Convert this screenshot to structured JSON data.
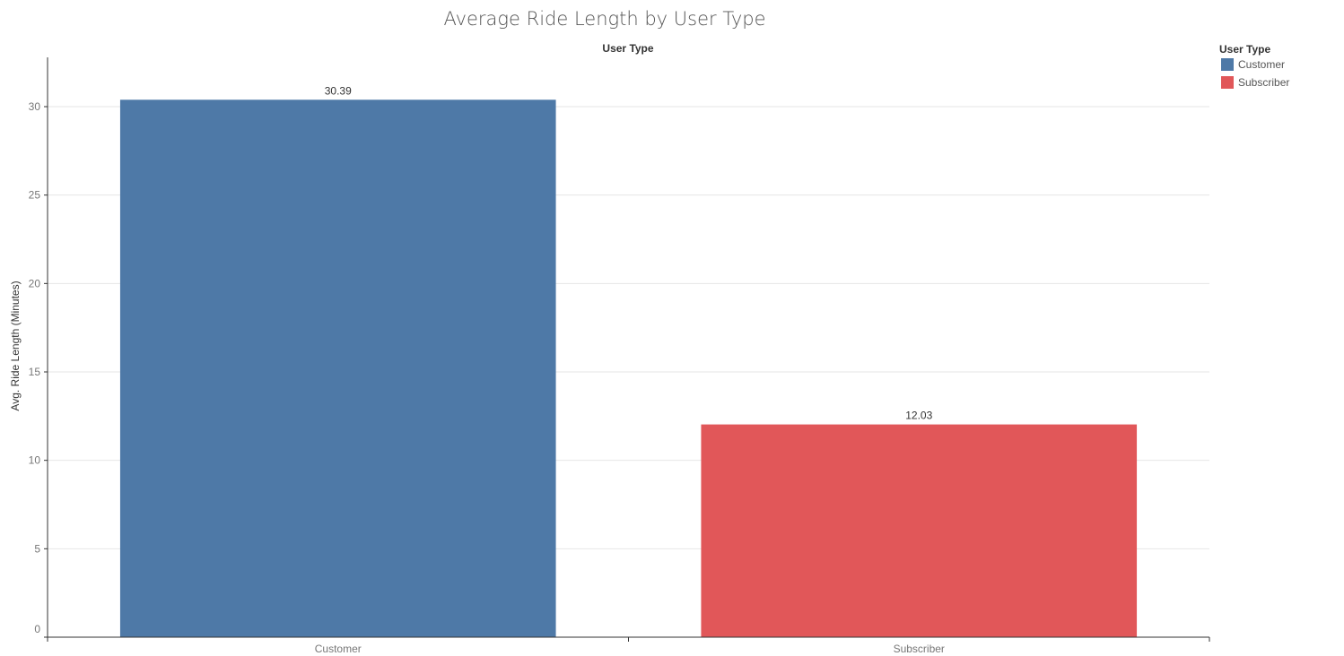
{
  "chart_data": {
    "type": "bar",
    "title": "Average Ride Length by User Type",
    "column_header": "User Type",
    "xlabel": "",
    "ylabel": "Avg. Ride Length (Minutes)",
    "categories": [
      "Customer",
      "Subscriber"
    ],
    "values": [
      30.39,
      12.03
    ],
    "data_labels": [
      "30.39",
      "12.03"
    ],
    "colors": [
      "#4e79a7",
      "#e15759"
    ],
    "ylim": [
      0,
      33
    ],
    "yticks": [
      0,
      5,
      10,
      15,
      20,
      25,
      30
    ],
    "ytick_labels": [
      "0",
      "5",
      "10",
      "15",
      "20",
      "25",
      "30"
    ],
    "grid": true,
    "legend": {
      "title": "User Type",
      "placement": "top-right",
      "entries": [
        {
          "label": "Customer",
          "color": "#4e79a7"
        },
        {
          "label": "Subscriber",
          "color": "#e15759"
        }
      ]
    }
  }
}
